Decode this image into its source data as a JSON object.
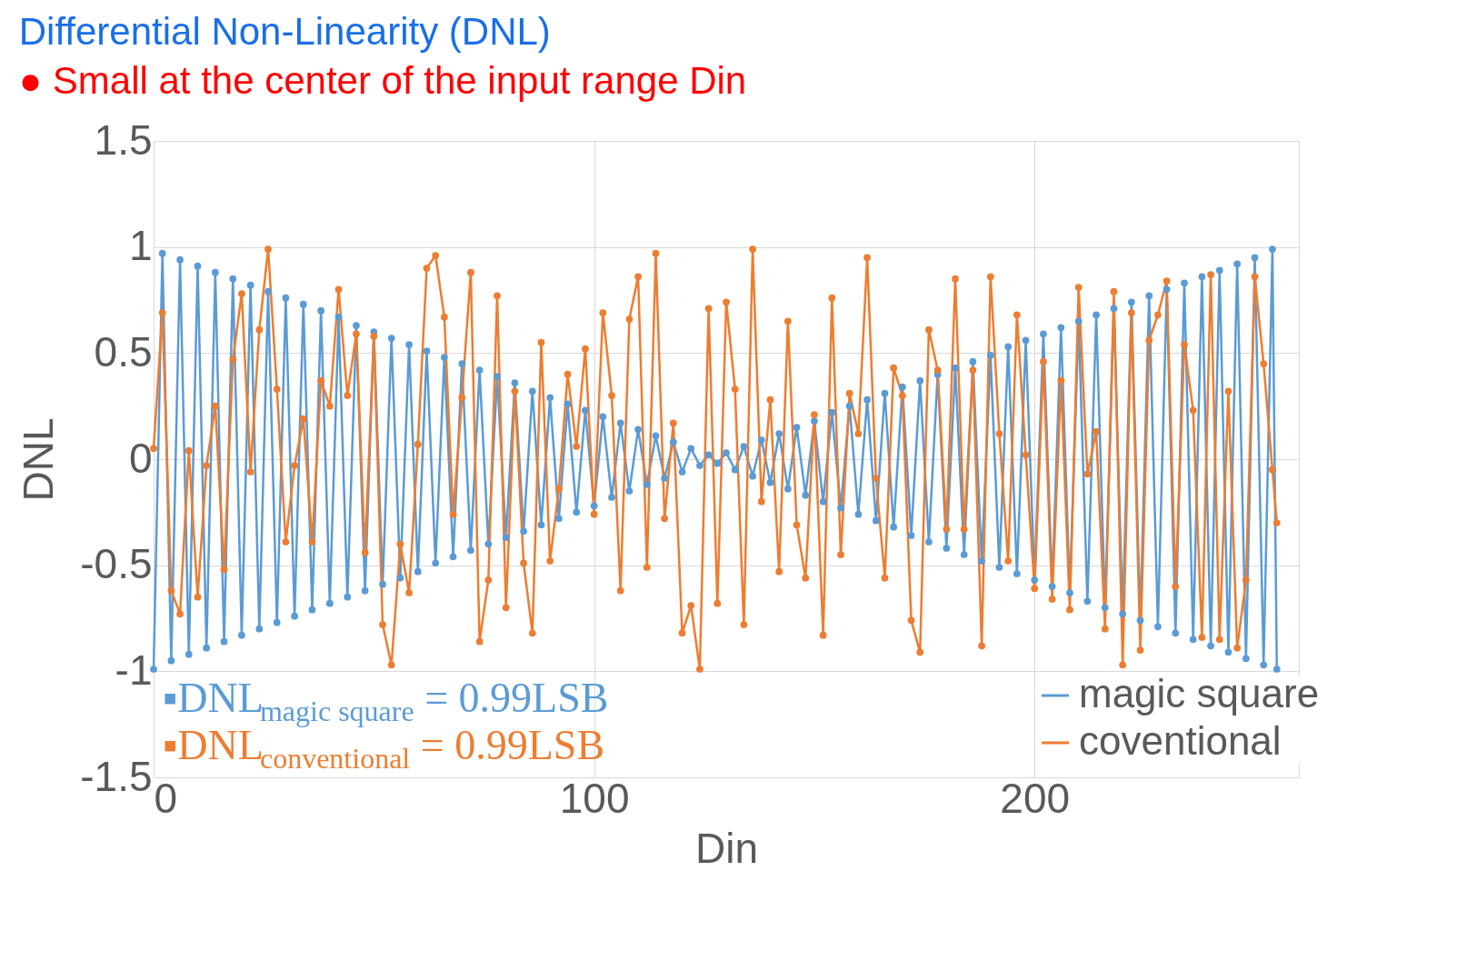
{
  "chart_data": {
    "type": "line",
    "title": "Differential Non-Linearity (DNL)",
    "subtitle": "● Small at the center of the input range Din",
    "xlabel": "Din",
    "ylabel": "DNL",
    "x": [
      0,
      2,
      4,
      6,
      8,
      10,
      12,
      14,
      16,
      18,
      20,
      22,
      24,
      26,
      28,
      30,
      32,
      34,
      36,
      38,
      40,
      42,
      44,
      46,
      48,
      50,
      52,
      54,
      56,
      58,
      60,
      62,
      64,
      66,
      68,
      70,
      72,
      74,
      76,
      78,
      80,
      82,
      84,
      86,
      88,
      90,
      92,
      94,
      96,
      98,
      100,
      102,
      104,
      106,
      108,
      110,
      112,
      114,
      116,
      118,
      120,
      122,
      124,
      126,
      128,
      130,
      132,
      134,
      136,
      138,
      140,
      142,
      144,
      146,
      148,
      150,
      152,
      154,
      156,
      158,
      160,
      162,
      164,
      166,
      168,
      170,
      172,
      174,
      176,
      178,
      180,
      182,
      184,
      186,
      188,
      190,
      192,
      194,
      196,
      198,
      200,
      202,
      204,
      206,
      208,
      210,
      212,
      214,
      216,
      218,
      220,
      222,
      224,
      226,
      228,
      230,
      232,
      234,
      236,
      238,
      240,
      242,
      244,
      246,
      248,
      250,
      252,
      254,
      255
    ],
    "series": [
      {
        "name": "magic square",
        "color": "#5b9bd5",
        "values": [
          -0.99,
          0.97,
          -0.95,
          0.94,
          -0.92,
          0.91,
          -0.89,
          0.88,
          -0.86,
          0.85,
          -0.83,
          0.82,
          -0.8,
          0.79,
          -0.77,
          0.76,
          -0.74,
          0.73,
          -0.71,
          0.7,
          -0.68,
          0.67,
          -0.65,
          0.63,
          -0.62,
          0.6,
          -0.59,
          0.57,
          -0.56,
          0.54,
          -0.53,
          0.51,
          -0.49,
          0.48,
          -0.46,
          0.45,
          -0.43,
          0.42,
          -0.4,
          0.39,
          -0.37,
          0.36,
          -0.34,
          0.32,
          -0.31,
          0.29,
          -0.28,
          0.26,
          -0.25,
          0.23,
          -0.22,
          0.2,
          -0.18,
          0.17,
          -0.15,
          0.14,
          -0.12,
          0.11,
          -0.09,
          0.08,
          -0.06,
          0.05,
          -0.03,
          0.02,
          -0.02,
          0.03,
          -0.05,
          0.06,
          -0.08,
          0.09,
          -0.11,
          0.12,
          -0.14,
          0.15,
          -0.17,
          0.18,
          -0.2,
          0.22,
          -0.23,
          0.25,
          -0.26,
          0.28,
          -0.29,
          0.31,
          -0.32,
          0.34,
          -0.36,
          0.37,
          -0.39,
          0.4,
          -0.42,
          0.43,
          -0.45,
          0.46,
          -0.48,
          0.49,
          -0.51,
          0.53,
          -0.54,
          0.56,
          -0.57,
          0.59,
          -0.6,
          0.62,
          -0.63,
          0.65,
          -0.67,
          0.68,
          -0.7,
          0.71,
          -0.73,
          0.74,
          -0.76,
          0.77,
          -0.79,
          0.8,
          -0.82,
          0.83,
          -0.85,
          0.86,
          -0.88,
          0.89,
          -0.91,
          0.92,
          -0.94,
          0.95,
          -0.97,
          0.99,
          -0.99
        ]
      },
      {
        "name": "coventional",
        "color": "#ed7d31",
        "values": [
          0.05,
          0.69,
          -0.62,
          -0.73,
          0.04,
          -0.65,
          -0.03,
          0.25,
          -0.52,
          0.47,
          0.78,
          -0.06,
          0.61,
          0.99,
          0.33,
          -0.39,
          -0.03,
          0.19,
          -0.39,
          0.37,
          0.25,
          0.8,
          0.3,
          0.59,
          -0.44,
          0.58,
          -0.78,
          -0.97,
          -0.4,
          -0.63,
          0.07,
          0.9,
          0.96,
          0.67,
          -0.26,
          0.29,
          0.88,
          -0.86,
          -0.57,
          0.77,
          -0.7,
          0.32,
          -0.49,
          -0.82,
          0.55,
          -0.48,
          -0.14,
          0.4,
          0.06,
          0.52,
          -0.26,
          0.69,
          0.3,
          -0.62,
          0.66,
          0.86,
          -0.51,
          0.97,
          -0.28,
          0.17,
          -0.82,
          -0.69,
          -0.99,
          0.71,
          -0.68,
          0.74,
          0.33,
          -0.78,
          0.99,
          -0.2,
          0.28,
          -0.53,
          0.65,
          -0.31,
          -0.56,
          0.21,
          -0.83,
          0.76,
          -0.45,
          0.31,
          0.12,
          0.95,
          -0.09,
          -0.56,
          0.43,
          0.3,
          -0.76,
          -0.91,
          0.61,
          0.42,
          -0.33,
          0.85,
          -0.33,
          0.42,
          -0.88,
          0.86,
          0.12,
          -0.48,
          0.68,
          0.02,
          -0.61,
          0.46,
          -0.66,
          0.37,
          -0.71,
          0.81,
          -0.07,
          0.13,
          -0.8,
          0.79,
          -0.97,
          0.69,
          -0.9,
          0.56,
          0.68,
          0.84,
          -0.6,
          0.54,
          0.23,
          -0.84,
          0.87,
          -0.85,
          0.32,
          -0.89,
          -0.57,
          0.86,
          0.45,
          -0.05,
          -0.3
        ]
      }
    ],
    "annotations": [
      "▪DNL$_{magic square}$ = 0.99LSB",
      "▪DNL$_{conventional}$ = 0.99LSB"
    ],
    "xlim": [
      0,
      260
    ],
    "xticks": [
      0,
      100,
      200
    ],
    "ylim": [
      -1.5,
      1.5
    ],
    "yticks": [
      -1.5,
      -1,
      -0.5,
      0,
      0.5,
      1,
      1.5
    ],
    "grid": true,
    "legend": "bottom right",
    "marker": "circle",
    "line_style": "solid"
  }
}
